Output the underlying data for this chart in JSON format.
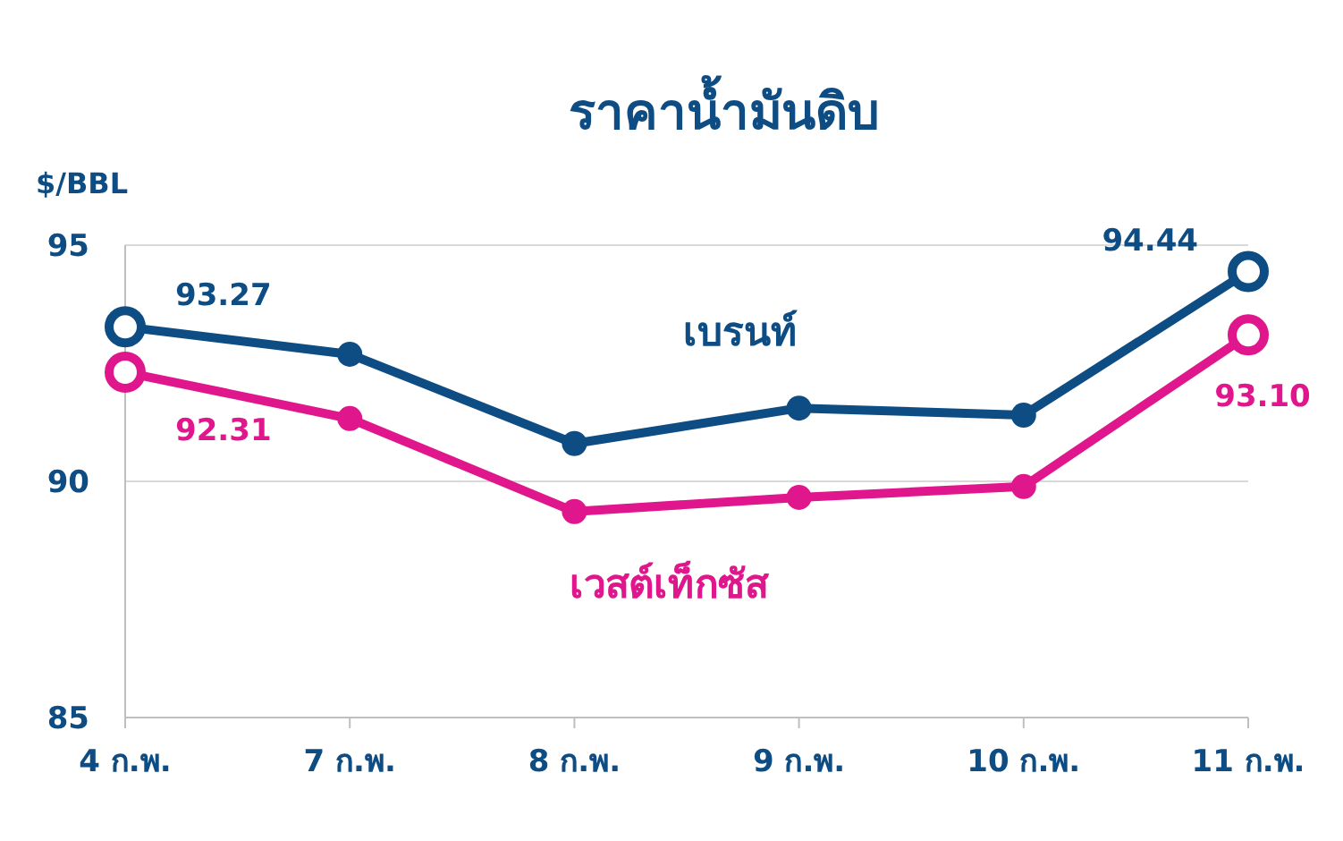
{
  "chart_data": {
    "type": "line",
    "title": "ราคาน้ำมันดิบ",
    "ylabel": "$/BBL",
    "categories": [
      "4 ก.พ.",
      "7 ก.พ.",
      "8 ก.พ.",
      "9 ก.พ.",
      "10 ก.พ.",
      "11 ก.พ."
    ],
    "series": [
      {
        "name": "เบรนท์",
        "color": "#0e4c84",
        "values": [
          93.27,
          92.69,
          90.8,
          91.55,
          91.4,
          94.44
        ],
        "value_labels": [
          "93.27",
          null,
          null,
          null,
          null,
          "94.44"
        ]
      },
      {
        "name": "เวสต์เท็กซัส",
        "color": "#e0168c",
        "values": [
          92.31,
          91.33,
          89.36,
          89.66,
          89.89,
          93.1
        ],
        "value_labels": [
          "92.31",
          null,
          null,
          null,
          null,
          "93.10"
        ]
      }
    ],
    "ylim": [
      85,
      95
    ],
    "yticks": [
      85,
      90,
      95
    ],
    "grid": "y",
    "marker": "circle",
    "line_style": "solid"
  }
}
